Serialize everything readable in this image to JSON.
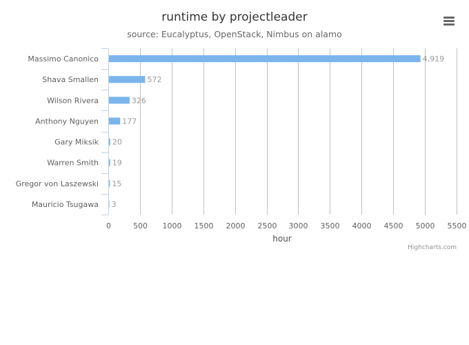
{
  "menu": {
    "icon": "hamburger-menu-icon"
  },
  "credits": "Highcharts.com",
  "colors": {
    "bar": "#7cb5ec",
    "grid": "#c0c0c0",
    "axis_line": "#c0d0e0"
  },
  "chart_data": {
    "type": "bar",
    "orientation": "horizontal",
    "title": "runtime by projectleader",
    "subtitle": "source: Eucalyptus, OpenStack, Nimbus on alamo",
    "xlabel": "hour",
    "categories": [
      "Massimo Canonico",
      "Shava Smallen",
      "Wilson Rivera",
      "Anthony Nguyen",
      "Gary Miksik",
      "Warren Smith",
      "Gregor von Laszewski",
      "Mauricio Tsugawa"
    ],
    "values": [
      4919,
      572,
      326,
      177,
      20,
      19,
      15,
      3
    ],
    "value_labels": [
      "4,919",
      "572",
      "326",
      "177",
      "20",
      "19",
      "15",
      "3"
    ],
    "value_axis": {
      "min": 0,
      "max": 5500,
      "ticks": [
        0,
        500,
        1000,
        1500,
        2000,
        2500,
        3000,
        3500,
        4000,
        4500,
        5000,
        5500
      ]
    },
    "grid": true,
    "legend": "none"
  }
}
